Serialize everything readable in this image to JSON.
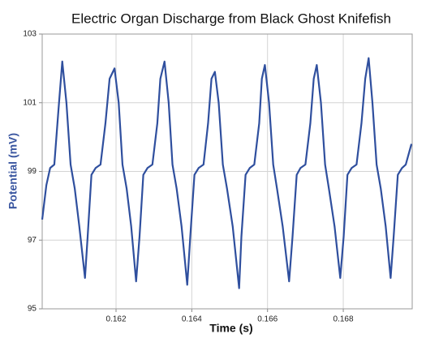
{
  "chart_data": {
    "type": "line",
    "title": "Electric Organ Discharge from Black Ghost Knifefish",
    "x_label": "Time (s)",
    "y_label": "Potential (mV)",
    "xlim": [
      0.16005,
      0.16982
    ],
    "ylim": [
      95,
      103
    ],
    "xticks": [
      0.162,
      0.164,
      0.166,
      0.168
    ],
    "yticks": [
      95,
      97,
      99,
      101,
      103
    ],
    "grid": true,
    "x": [
      0.16005,
      0.16016,
      0.16026,
      0.16037,
      0.16048,
      0.16058,
      0.16069,
      0.1608,
      0.16091,
      0.16103,
      0.16118,
      0.16125,
      0.16135,
      0.16146,
      0.16159,
      0.16172,
      0.16183,
      0.16196,
      0.16207,
      0.16217,
      0.16228,
      0.1624,
      0.16253,
      0.16262,
      0.16272,
      0.16283,
      0.16296,
      0.16309,
      0.16317,
      0.16328,
      0.16339,
      0.16349,
      0.1636,
      0.16373,
      0.16388,
      0.16396,
      0.16407,
      0.16418,
      0.16431,
      0.16443,
      0.16452,
      0.16461,
      0.16471,
      0.16482,
      0.16493,
      0.16508,
      0.16525,
      0.16531,
      0.16542,
      0.16553,
      0.16565,
      0.16578,
      0.16585,
      0.16593,
      0.16604,
      0.16615,
      0.16625,
      0.1664,
      0.16657,
      0.16666,
      0.16677,
      0.16687,
      0.167,
      0.16713,
      0.16722,
      0.1673,
      0.16741,
      0.16752,
      0.16762,
      0.16777,
      0.16792,
      0.16801,
      0.16811,
      0.16822,
      0.16835,
      0.16848,
      0.16858,
      0.16867,
      0.16877,
      0.16888,
      0.16899,
      0.16912,
      0.16925,
      0.16933,
      0.16944,
      0.16955,
      0.16965,
      0.1698
    ],
    "series": [
      {
        "color": "#2f4f9e",
        "values": [
          97.6,
          98.6,
          99.1,
          99.2,
          100.8,
          102.2,
          101.0,
          99.2,
          98.5,
          97.4,
          95.9,
          97.1,
          98.9,
          99.1,
          99.2,
          100.4,
          101.7,
          102.0,
          101.0,
          99.2,
          98.5,
          97.4,
          95.8,
          97.1,
          98.9,
          99.1,
          99.2,
          100.4,
          101.7,
          102.2,
          101.0,
          99.2,
          98.5,
          97.4,
          95.7,
          97.1,
          98.9,
          99.1,
          99.2,
          100.4,
          101.7,
          101.9,
          101.0,
          99.2,
          98.5,
          97.4,
          95.6,
          97.1,
          98.9,
          99.1,
          99.2,
          100.4,
          101.7,
          102.1,
          101.0,
          99.2,
          98.5,
          97.4,
          95.8,
          97.1,
          98.9,
          99.1,
          99.2,
          100.4,
          101.7,
          102.1,
          101.0,
          99.2,
          98.5,
          97.4,
          95.9,
          97.1,
          98.9,
          99.1,
          99.2,
          100.4,
          101.7,
          102.3,
          101.0,
          99.2,
          98.5,
          97.4,
          95.9,
          97.1,
          98.9,
          99.1,
          99.2,
          99.8
        ]
      }
    ]
  }
}
